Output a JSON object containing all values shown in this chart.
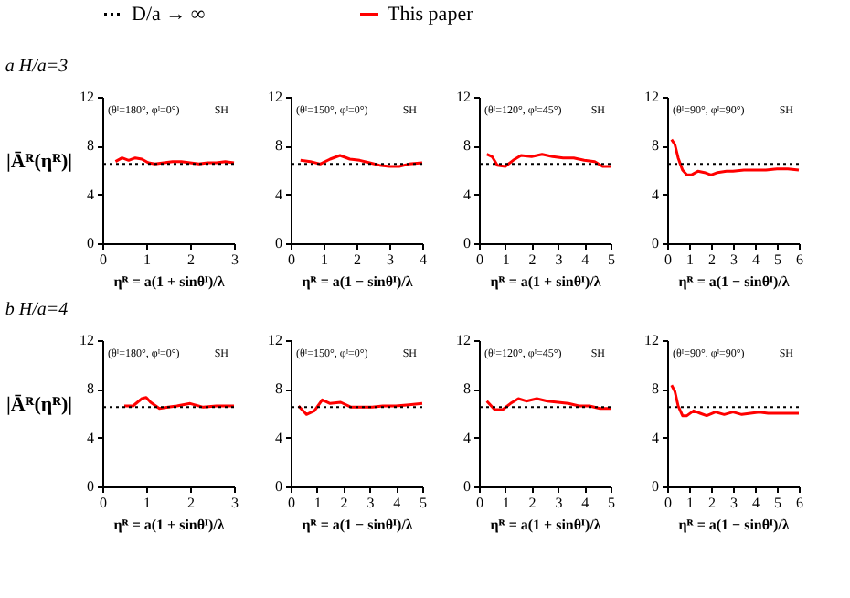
{
  "chart_data": [
    {
      "type": "line",
      "title": "a    H/a=3",
      "ylabel": "|Āᴿ(ηᴿ)|",
      "xlabel": "ηᴿ = a(1 + sinθᴵ)/λ",
      "xlim": [
        0,
        3
      ],
      "xticks": [
        0,
        1,
        2,
        3
      ],
      "ylim": [
        0,
        12
      ],
      "yticks": [
        0,
        4,
        8,
        12
      ],
      "grid": false,
      "legend": "top",
      "annotations": [
        "(θᴵ=180°, φᴵ=0°)",
        "SH"
      ],
      "series": [
        {
          "name": "This paper",
          "color": "#ff0000",
          "line_style": "solid",
          "x": [
            0.3,
            0.45,
            0.6,
            0.75,
            0.9,
            1.05,
            1.2,
            1.4,
            1.6,
            1.8,
            2.0,
            2.2,
            2.4,
            2.6,
            2.8,
            3.0
          ],
          "values": [
            6.7,
            7.0,
            6.8,
            7.0,
            6.9,
            6.6,
            6.5,
            6.6,
            6.7,
            6.7,
            6.6,
            6.5,
            6.6,
            6.6,
            6.7,
            6.6
          ]
        }
      ],
      "ref_lines": [
        {
          "axis": "y",
          "value": 6.5,
          "label": "D/a → ∞",
          "color": "#000000",
          "line_style": "dotted"
        }
      ]
    },
    {
      "type": "line",
      "xlabel": "ηᴿ = a(1 − sinθᴵ)/λ",
      "xlim": [
        0,
        4
      ],
      "xticks": [
        0,
        1,
        2,
        3,
        4
      ],
      "ylim": [
        0,
        12
      ],
      "yticks": [
        0,
        4,
        8,
        12
      ],
      "grid": false,
      "legend": "top",
      "annotations": [
        "(θᴵ=150°, φᴵ=0°)",
        "SH"
      ],
      "series": [
        {
          "name": "This paper",
          "color": "#ff0000",
          "line_style": "solid",
          "x": [
            0.3,
            0.6,
            0.9,
            1.2,
            1.5,
            1.8,
            2.1,
            2.4,
            2.7,
            3.0,
            3.3,
            3.6,
            4.0
          ],
          "values": [
            6.8,
            6.7,
            6.5,
            6.9,
            7.2,
            6.9,
            6.8,
            6.6,
            6.4,
            6.3,
            6.3,
            6.5,
            6.6
          ]
        }
      ],
      "ref_lines": [
        {
          "axis": "y",
          "value": 6.5,
          "color": "#000000",
          "line_style": "dotted"
        }
      ]
    },
    {
      "type": "line",
      "xlabel": "ηᴿ = a(1 + sinθᴵ)/λ",
      "xlim": [
        0,
        5
      ],
      "xticks": [
        0,
        1,
        2,
        3,
        4,
        5
      ],
      "ylim": [
        0,
        12
      ],
      "yticks": [
        0,
        4,
        8,
        12
      ],
      "grid": false,
      "legend": "top",
      "annotations": [
        "(θᴵ=120°, φᴵ=45°)",
        "SH"
      ],
      "series": [
        {
          "name": "This paper",
          "color": "#ff0000",
          "line_style": "solid",
          "x": [
            0.3,
            0.5,
            0.7,
            1.0,
            1.3,
            1.6,
            2.0,
            2.4,
            2.8,
            3.2,
            3.6,
            4.0,
            4.4,
            4.7,
            5.0
          ],
          "values": [
            7.3,
            7.1,
            6.4,
            6.3,
            6.8,
            7.2,
            7.1,
            7.3,
            7.1,
            7.0,
            7.0,
            6.8,
            6.7,
            6.3,
            6.3
          ]
        }
      ],
      "ref_lines": [
        {
          "axis": "y",
          "value": 6.5,
          "color": "#000000",
          "line_style": "dotted"
        }
      ]
    },
    {
      "type": "line",
      "xlabel": "ηᴿ = a(1 − sinθᴵ)/λ",
      "xlim": [
        0,
        6
      ],
      "xticks": [
        0,
        1,
        2,
        3,
        4,
        5,
        6
      ],
      "ylim": [
        0,
        12
      ],
      "yticks": [
        0,
        4,
        8,
        12
      ],
      "grid": false,
      "legend": "top",
      "annotations": [
        "(θᴵ=90°, φᴵ=90°)",
        "SH"
      ],
      "series": [
        {
          "name": "This paper",
          "color": "#ff0000",
          "line_style": "solid",
          "x": [
            0.2,
            0.35,
            0.5,
            0.7,
            0.9,
            1.1,
            1.4,
            1.7,
            2.0,
            2.3,
            2.7,
            3.0,
            3.5,
            4.0,
            4.5,
            5.0,
            5.5,
            6.0
          ],
          "values": [
            8.5,
            8.1,
            7.0,
            6.0,
            5.6,
            5.6,
            5.9,
            5.8,
            5.6,
            5.8,
            5.9,
            5.9,
            6.0,
            6.0,
            6.0,
            6.1,
            6.1,
            6.0
          ]
        }
      ],
      "ref_lines": [
        {
          "axis": "y",
          "value": 6.5,
          "color": "#000000",
          "line_style": "dotted"
        }
      ]
    },
    {
      "type": "line",
      "title": "b    H/a=4",
      "ylabel": "|Āᴿ(ηᴿ)|",
      "xlabel": "ηᴿ = a(1 + sinθᴵ)/λ",
      "xlim": [
        0,
        3
      ],
      "xticks": [
        0,
        1,
        2,
        3
      ],
      "ylim": [
        0,
        12
      ],
      "yticks": [
        0,
        4,
        8,
        12
      ],
      "grid": false,
      "legend": "top",
      "annotations": [
        "(θᴵ=180°, φᴵ=0°)",
        "SH"
      ],
      "series": [
        {
          "name": "This paper",
          "color": "#ff0000",
          "line_style": "solid",
          "x": [
            0.5,
            0.7,
            0.9,
            1.0,
            1.1,
            1.3,
            1.5,
            1.7,
            2.0,
            2.3,
            2.6,
            3.0
          ],
          "values": [
            6.6,
            6.6,
            7.2,
            7.3,
            6.9,
            6.4,
            6.5,
            6.6,
            6.8,
            6.5,
            6.6,
            6.6
          ]
        }
      ],
      "ref_lines": [
        {
          "axis": "y",
          "value": 6.5,
          "color": "#000000",
          "line_style": "dotted"
        }
      ]
    },
    {
      "type": "line",
      "xlabel": "ηᴿ = a(1 − sinθᴵ)/λ",
      "xlim": [
        0,
        5
      ],
      "xticks": [
        0,
        1,
        2,
        3,
        4,
        5
      ],
      "ylim": [
        0,
        12
      ],
      "yticks": [
        0,
        4,
        8,
        12
      ],
      "grid": false,
      "legend": "top",
      "annotations": [
        "(θᴵ=150°, φᴵ=0°)",
        "SH"
      ],
      "series": [
        {
          "name": "This paper",
          "color": "#ff0000",
          "line_style": "solid",
          "x": [
            0.3,
            0.6,
            0.9,
            1.2,
            1.5,
            1.9,
            2.3,
            2.7,
            3.1,
            3.5,
            4.0,
            4.5,
            5.0
          ],
          "values": [
            6.6,
            5.9,
            6.2,
            7.1,
            6.8,
            6.9,
            6.5,
            6.5,
            6.5,
            6.6,
            6.6,
            6.7,
            6.8
          ]
        }
      ],
      "ref_lines": [
        {
          "axis": "y",
          "value": 6.5,
          "color": "#000000",
          "line_style": "dotted"
        }
      ]
    },
    {
      "type": "line",
      "xlabel": "ηᴿ = a(1 + sinθᴵ)/λ",
      "xlim": [
        0,
        5
      ],
      "xticks": [
        0,
        1,
        2,
        3,
        4,
        5
      ],
      "ylim": [
        0,
        12
      ],
      "yticks": [
        0,
        4,
        8,
        12
      ],
      "grid": false,
      "legend": "top",
      "annotations": [
        "(θᴵ=120°, φᴵ=45°)",
        "SH"
      ],
      "series": [
        {
          "name": "This paper",
          "color": "#ff0000",
          "line_style": "solid",
          "x": [
            0.3,
            0.6,
            0.9,
            1.2,
            1.5,
            1.8,
            2.2,
            2.6,
            3.0,
            3.4,
            3.8,
            4.2,
            4.6,
            5.0
          ],
          "values": [
            7.0,
            6.3,
            6.3,
            6.8,
            7.2,
            7.0,
            7.2,
            7.0,
            6.9,
            6.8,
            6.6,
            6.6,
            6.4,
            6.4
          ]
        }
      ],
      "ref_lines": [
        {
          "axis": "y",
          "value": 6.5,
          "color": "#000000",
          "line_style": "dotted"
        }
      ]
    },
    {
      "type": "line",
      "xlabel": "ηᴿ = a(1 − sinθᴵ)/λ",
      "xlim": [
        0,
        6
      ],
      "xticks": [
        0,
        1,
        2,
        3,
        4,
        5,
        6
      ],
      "ylim": [
        0,
        12
      ],
      "yticks": [
        0,
        4,
        8,
        12
      ],
      "grid": false,
      "legend": "top",
      "annotations": [
        "(θᴵ=90°, φᴵ=90°)",
        "SH"
      ],
      "series": [
        {
          "name": "This paper",
          "color": "#ff0000",
          "line_style": "solid",
          "x": [
            0.2,
            0.35,
            0.5,
            0.7,
            0.9,
            1.2,
            1.5,
            1.8,
            2.2,
            2.6,
            3.0,
            3.4,
            3.8,
            4.2,
            4.6,
            5.0,
            5.5,
            6.0
          ],
          "values": [
            8.3,
            7.8,
            6.6,
            5.8,
            5.8,
            6.2,
            6.0,
            5.8,
            6.1,
            5.9,
            6.1,
            5.9,
            6.0,
            6.1,
            6.0,
            6.0,
            6.0,
            6.0
          ]
        }
      ],
      "ref_lines": [
        {
          "axis": "y",
          "value": 6.5,
          "color": "#000000",
          "line_style": "dotted"
        }
      ]
    }
  ]
}
